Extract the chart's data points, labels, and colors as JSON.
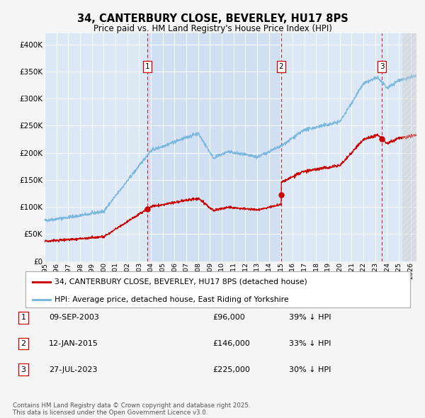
{
  "title": "34, CANTERBURY CLOSE, BEVERLEY, HU17 8PS",
  "subtitle": "Price paid vs. HM Land Registry's House Price Index (HPI)",
  "ylim": [
    0,
    420000
  ],
  "yticks": [
    0,
    50000,
    100000,
    150000,
    200000,
    250000,
    300000,
    350000,
    400000
  ],
  "ytick_labels": [
    "£0",
    "£50K",
    "£100K",
    "£150K",
    "£200K",
    "£250K",
    "£300K",
    "£350K",
    "£400K"
  ],
  "hpi_color": "#7bb8e0",
  "price_color": "#cc0000",
  "vline_color": "#cc0000",
  "plot_bg": "#dce8f5",
  "fig_bg": "#f5f5f5",
  "grid_color": "#ffffff",
  "transactions": [
    {
      "number": 1,
      "date": "09-SEP-2003",
      "price": 96000,
      "hpi_note": "39% ↓ HPI",
      "x_year": 2003.69
    },
    {
      "number": 2,
      "date": "12-JAN-2015",
      "price": 146000,
      "hpi_note": "33% ↓ HPI",
      "x_year": 2015.04
    },
    {
      "number": 3,
      "date": "27-JUL-2023",
      "price": 225000,
      "hpi_note": "30% ↓ HPI",
      "x_year": 2023.57
    }
  ],
  "legend_entries": [
    "34, CANTERBURY CLOSE, BEVERLEY, HU17 8PS (detached house)",
    "HPI: Average price, detached house, East Riding of Yorkshire"
  ],
  "footer_text": "Contains HM Land Registry data © Crown copyright and database right 2025.\nThis data is licensed under the Open Government Licence v3.0.",
  "xmin": 1995.0,
  "xmax": 2026.5
}
